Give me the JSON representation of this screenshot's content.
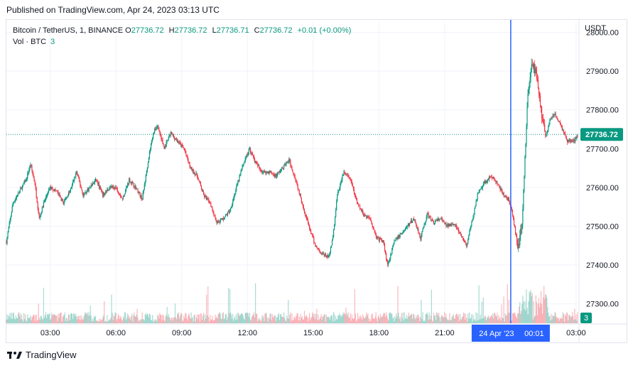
{
  "header": {
    "published": "Published on TradingView.com, Apr 24, 2023 03:13 UTC"
  },
  "legend": {
    "symbol": "Bitcoin / TetherUS, 1, BINANCE",
    "o_label": "O",
    "o": "27736.72",
    "h_label": "H",
    "h": "27736.72",
    "l_label": "L",
    "l": "27736.71",
    "c_label": "C",
    "c": "27736.72",
    "change": "+0.01 (+0.00%)",
    "vol_label": "Vol · BTC",
    "vol": "3"
  },
  "axis": {
    "currency": "USDT"
  },
  "footer": {
    "brand": "TradingView"
  },
  "colors": {
    "up": "#089981",
    "down": "#f23645",
    "crosshair": "#2962ff",
    "grid": "#f0f3fa"
  },
  "chart_data": {
    "type": "candlestick",
    "y_ticks": [
      "28000.00",
      "27900.00",
      "27800.00",
      "27700.00",
      "27600.00",
      "27500.00",
      "27400.00",
      "27300.00"
    ],
    "ylim": [
      27250,
      28010
    ],
    "x_ticks": [
      "03:00",
      "06:00",
      "09:00",
      "12:00",
      "15:00",
      "18:00",
      "21:00",
      "03:00"
    ],
    "x_tick_hours": [
      3,
      6,
      9,
      12,
      15,
      18,
      21,
      27
    ],
    "xlim_hours": [
      1.0,
      27.1
    ],
    "crosshair_hour": 24.0167,
    "crosshair_label": "24 Apr '23",
    "crosshair_time": "00:01",
    "last_price": 27736.72,
    "last_price_label": "27736.72",
    "last_volume_label": "3",
    "price_path": [
      [
        1.0,
        27460
      ],
      [
        1.3,
        27560
      ],
      [
        1.6,
        27590
      ],
      [
        1.9,
        27620
      ],
      [
        2.1,
        27660
      ],
      [
        2.3,
        27610
      ],
      [
        2.5,
        27520
      ],
      [
        2.7,
        27560
      ],
      [
        3.0,
        27600
      ],
      [
        3.3,
        27590
      ],
      [
        3.6,
        27560
      ],
      [
        3.9,
        27590
      ],
      [
        4.2,
        27640
      ],
      [
        4.5,
        27580
      ],
      [
        4.8,
        27600
      ],
      [
        5.1,
        27620
      ],
      [
        5.4,
        27580
      ],
      [
        5.7,
        27600
      ],
      [
        6.0,
        27600
      ],
      [
        6.3,
        27570
      ],
      [
        6.6,
        27620
      ],
      [
        6.9,
        27600
      ],
      [
        7.2,
        27570
      ],
      [
        7.5,
        27680
      ],
      [
        7.7,
        27740
      ],
      [
        7.9,
        27760
      ],
      [
        8.2,
        27700
      ],
      [
        8.5,
        27740
      ],
      [
        8.8,
        27720
      ],
      [
        9.1,
        27700
      ],
      [
        9.4,
        27650
      ],
      [
        9.7,
        27630
      ],
      [
        10.0,
        27580
      ],
      [
        10.3,
        27560
      ],
      [
        10.6,
        27510
      ],
      [
        10.9,
        27520
      ],
      [
        11.2,
        27540
      ],
      [
        11.5,
        27600
      ],
      [
        11.8,
        27660
      ],
      [
        12.1,
        27700
      ],
      [
        12.4,
        27660
      ],
      [
        12.7,
        27640
      ],
      [
        13.0,
        27640
      ],
      [
        13.3,
        27630
      ],
      [
        13.6,
        27650
      ],
      [
        13.9,
        27670
      ],
      [
        14.2,
        27620
      ],
      [
        14.5,
        27560
      ],
      [
        14.8,
        27500
      ],
      [
        15.1,
        27450
      ],
      [
        15.4,
        27430
      ],
      [
        15.7,
        27420
      ],
      [
        15.9,
        27470
      ],
      [
        16.1,
        27580
      ],
      [
        16.4,
        27640
      ],
      [
        16.7,
        27620
      ],
      [
        17.0,
        27560
      ],
      [
        17.3,
        27530
      ],
      [
        17.6,
        27520
      ],
      [
        17.9,
        27470
      ],
      [
        18.2,
        27460
      ],
      [
        18.4,
        27400
      ],
      [
        18.7,
        27460
      ],
      [
        19.0,
        27480
      ],
      [
        19.3,
        27500
      ],
      [
        19.6,
        27520
      ],
      [
        19.9,
        27470
      ],
      [
        20.2,
        27530
      ],
      [
        20.5,
        27510
      ],
      [
        20.8,
        27520
      ],
      [
        21.1,
        27500
      ],
      [
        21.4,
        27510
      ],
      [
        21.7,
        27480
      ],
      [
        22.0,
        27450
      ],
      [
        22.2,
        27500
      ],
      [
        22.5,
        27580
      ],
      [
        22.8,
        27610
      ],
      [
        23.1,
        27630
      ],
      [
        23.4,
        27610
      ],
      [
        23.7,
        27580
      ],
      [
        23.9,
        27570
      ],
      [
        24.1,
        27530
      ],
      [
        24.35,
        27440
      ],
      [
        24.55,
        27520
      ],
      [
        24.8,
        27850
      ],
      [
        25.0,
        27920
      ],
      [
        25.2,
        27890
      ],
      [
        25.4,
        27800
      ],
      [
        25.6,
        27730
      ],
      [
        25.8,
        27770
      ],
      [
        26.0,
        27790
      ],
      [
        26.3,
        27760
      ],
      [
        26.6,
        27720
      ],
      [
        26.9,
        27720
      ],
      [
        27.1,
        27737
      ]
    ],
    "volume_ylim": [
      0,
      40
    ]
  }
}
